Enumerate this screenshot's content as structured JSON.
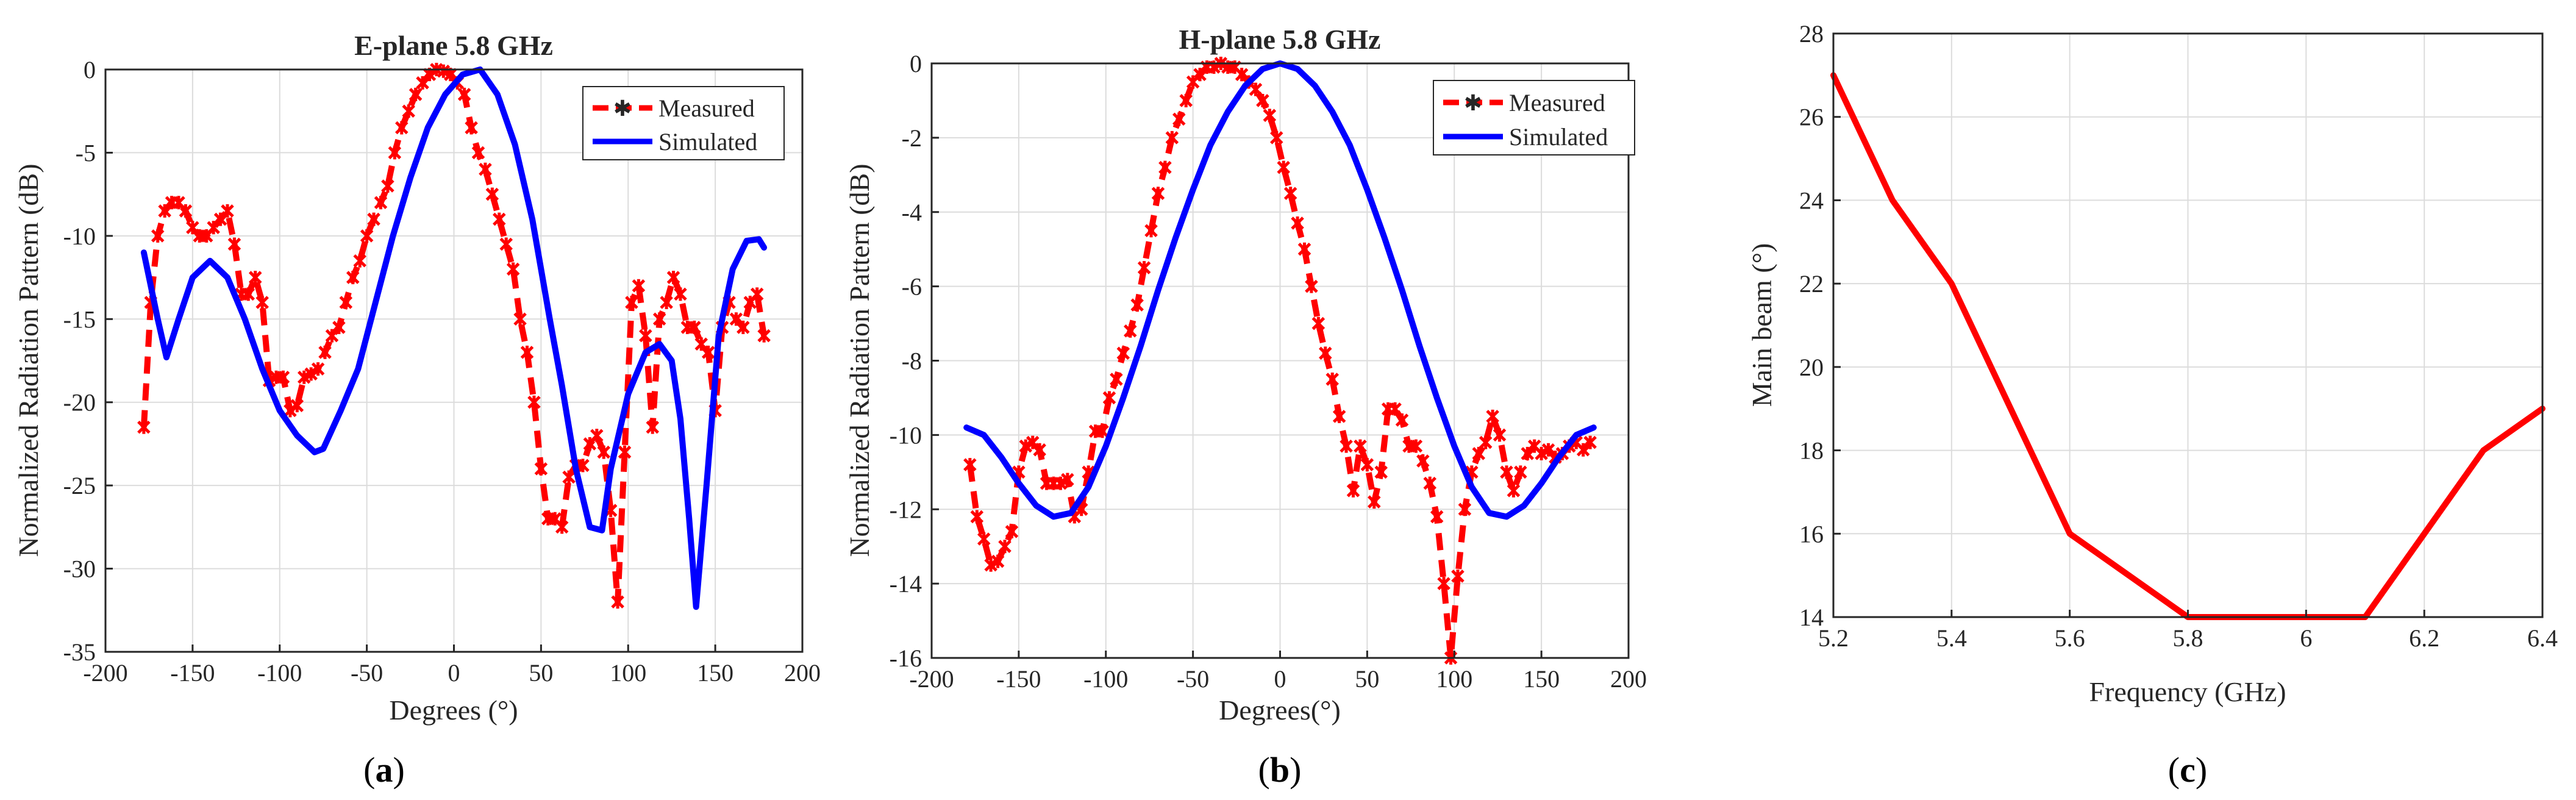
{
  "colors": {
    "measured": "#ff0000",
    "simulated": "#0000ff",
    "beam": "#ff0000"
  },
  "panel_labels": [
    {
      "open": "(",
      "letter": "a",
      "close": ")"
    },
    {
      "open": "(",
      "letter": "b",
      "close": ")"
    },
    {
      "open": "(",
      "letter": "c",
      "close": ")"
    }
  ],
  "chart_data": [
    {
      "type": "line",
      "title": "E-plane 5.8 GHz",
      "xlabel": "Degrees (°)",
      "ylabel": "Normalized Radiation Pattern (dB)",
      "xlim": [
        -200,
        200
      ],
      "ylim": [
        -35,
        0
      ],
      "xticks": [
        -200,
        -150,
        -100,
        -50,
        0,
        50,
        100,
        150,
        200
      ],
      "yticks": [
        0,
        -5,
        -10,
        -15,
        -20,
        -25,
        -30,
        -35
      ],
      "grid": true,
      "legend_position": "top-right",
      "series": [
        {
          "name": "Measured",
          "style": "dashed-markers",
          "x": [
            -178,
            -174,
            -170,
            -166,
            -162,
            -158,
            -154,
            -150,
            -146,
            -142,
            -138,
            -134,
            -130,
            -126,
            -122,
            -118,
            -114,
            -110,
            -106,
            -102,
            -98,
            -94,
            -90,
            -86,
            -82,
            -78,
            -74,
            -70,
            -66,
            -62,
            -58,
            -54,
            -50,
            -46,
            -42,
            -38,
            -34,
            -30,
            -26,
            -22,
            -18,
            -14,
            -10,
            -6,
            -2,
            2,
            6,
            10,
            14,
            18,
            22,
            26,
            30,
            34,
            38,
            42,
            46,
            50,
            54,
            58,
            62,
            66,
            70,
            74,
            78,
            82,
            86,
            90,
            94,
            98,
            102,
            106,
            110,
            114,
            118,
            122,
            126,
            130,
            134,
            138,
            142,
            146,
            150,
            154,
            158,
            162,
            166,
            170,
            174,
            178
          ],
          "y": [
            -21.5,
            -14,
            -10,
            -8.5,
            -8,
            -8,
            -8.5,
            -9.5,
            -10,
            -10,
            -9.5,
            -9,
            -8.5,
            -10.5,
            -13.5,
            -13.5,
            -12.5,
            -14,
            -18.7,
            -18.5,
            -18.5,
            -20.5,
            -20.2,
            -18.5,
            -18.3,
            -18,
            -17,
            -16,
            -15.5,
            -14,
            -12.5,
            -11.5,
            -10,
            -9,
            -8,
            -7,
            -5,
            -3.5,
            -2.5,
            -1.5,
            -0.8,
            -0.3,
            0,
            -0.1,
            -0.3,
            -0.8,
            -1.5,
            -3.5,
            -5,
            -6,
            -7.5,
            -9,
            -10.5,
            -12,
            -15,
            -17,
            -20,
            -24,
            -27,
            -27,
            -27.5,
            -24.5,
            -23.8,
            -23.8,
            -22.5,
            -22,
            -23,
            -26.5,
            -32,
            -23,
            -14,
            -13,
            -16,
            -21.5,
            -15,
            -14,
            -12.5,
            -13.5,
            -15.5,
            -15.5,
            -16.5,
            -17,
            -20.5,
            -15.5,
            -14,
            -15,
            -15.5,
            -14,
            -13.5,
            -16
          ]
        },
        {
          "name": "Simulated",
          "style": "solid",
          "x": [
            -178,
            -170,
            -165,
            -158,
            -150,
            -140,
            -130,
            -120,
            -110,
            -100,
            -90,
            -80,
            -75,
            -65,
            -55,
            -45,
            -35,
            -25,
            -15,
            -5,
            5,
            15,
            25,
            35,
            45,
            55,
            62,
            70,
            78,
            85,
            90,
            100,
            110,
            118,
            125,
            130,
            135,
            139,
            145,
            152,
            160,
            168,
            175,
            178
          ],
          "y": [
            -11,
            -15,
            -17.3,
            -15,
            -12.5,
            -11.5,
            -12.5,
            -15,
            -18,
            -20.5,
            -22,
            -23,
            -22.8,
            -20.5,
            -18,
            -14,
            -10,
            -6.5,
            -3.5,
            -1.5,
            -0.3,
            0,
            -1.5,
            -4.5,
            -9,
            -15,
            -19,
            -24,
            -27.5,
            -27.7,
            -24,
            -19.5,
            -17,
            -16.5,
            -17.5,
            -21,
            -27,
            -32.3,
            -25,
            -16,
            -12,
            -10.3,
            -10.2,
            -10.7
          ]
        }
      ]
    },
    {
      "type": "line",
      "title": "H-plane 5.8 GHz",
      "xlabel": "Degrees(°)",
      "ylabel": "Normalized Radiation Pattern (dB)",
      "xlim": [
        -200,
        200
      ],
      "ylim": [
        -16,
        0
      ],
      "xticks": [
        -200,
        -150,
        -100,
        -50,
        0,
        50,
        100,
        150,
        200
      ],
      "yticks": [
        0,
        -2,
        -4,
        -6,
        -8,
        -10,
        -12,
        -14,
        -16
      ],
      "grid": true,
      "legend_position": "top-right",
      "series": [
        {
          "name": "Measured",
          "style": "dashed-markers",
          "x": [
            -178,
            -174,
            -170,
            -166,
            -162,
            -158,
            -154,
            -150,
            -146,
            -142,
            -138,
            -134,
            -130,
            -126,
            -122,
            -118,
            -114,
            -110,
            -106,
            -102,
            -98,
            -94,
            -90,
            -86,
            -82,
            -78,
            -74,
            -70,
            -66,
            -62,
            -58,
            -54,
            -50,
            -46,
            -42,
            -38,
            -34,
            -30,
            -26,
            -22,
            -18,
            -14,
            -10,
            -6,
            -2,
            2,
            6,
            10,
            14,
            18,
            22,
            26,
            30,
            34,
            38,
            42,
            46,
            50,
            54,
            58,
            62,
            66,
            70,
            74,
            78,
            82,
            86,
            90,
            94,
            98,
            102,
            106,
            110,
            114,
            118,
            122,
            126,
            130,
            134,
            138,
            142,
            146,
            150,
            154,
            158,
            162,
            166,
            170,
            174,
            178
          ],
          "y": [
            -10.8,
            -12.2,
            -12.8,
            -13.5,
            -13.4,
            -13.0,
            -12.6,
            -11.0,
            -10.3,
            -10.2,
            -10.4,
            -11.3,
            -11.3,
            -11.3,
            -11.2,
            -12.2,
            -12.0,
            -11.0,
            -9.9,
            -9.9,
            -9.0,
            -8.5,
            -7.8,
            -7.2,
            -6.5,
            -5.5,
            -4.5,
            -3.5,
            -2.8,
            -2.0,
            -1.5,
            -1.0,
            -0.5,
            -0.3,
            -0.1,
            -0.1,
            0,
            -0.1,
            -0.1,
            -0.3,
            -0.5,
            -0.7,
            -1.0,
            -1.4,
            -2.0,
            -2.8,
            -3.5,
            -4.3,
            -5.0,
            -6.0,
            -7.0,
            -7.8,
            -8.5,
            -9.5,
            -10.3,
            -11.5,
            -10.3,
            -10.8,
            -11.8,
            -11.0,
            -9.3,
            -9.3,
            -9.6,
            -10.3,
            -10.3,
            -10.7,
            -11.3,
            -12.2,
            -14.0,
            -16.0,
            -13.8,
            -12.0,
            -11.0,
            -10.5,
            -10.2,
            -9.5,
            -10.0,
            -11.0,
            -11.5,
            -11.0,
            -10.5,
            -10.3,
            -10.5,
            -10.4,
            -10.6,
            -10.5,
            -10.3,
            -10.2,
            -10.4,
            -10.2
          ]
        },
        {
          "name": "Simulated",
          "style": "solid",
          "x": [
            -180,
            -170,
            -160,
            -150,
            -140,
            -130,
            -120,
            -110,
            -100,
            -90,
            -80,
            -70,
            -60,
            -50,
            -40,
            -30,
            -20,
            -10,
            0,
            10,
            20,
            30,
            40,
            50,
            60,
            70,
            80,
            90,
            100,
            110,
            120,
            130,
            140,
            150,
            160,
            170,
            180
          ],
          "y": [
            -9.8,
            -10.0,
            -10.6,
            -11.3,
            -11.9,
            -12.2,
            -12.1,
            -11.4,
            -10.3,
            -9.0,
            -7.6,
            -6.1,
            -4.7,
            -3.4,
            -2.2,
            -1.3,
            -0.6,
            -0.15,
            0,
            -0.15,
            -0.6,
            -1.3,
            -2.2,
            -3.4,
            -4.7,
            -6.1,
            -7.6,
            -9.0,
            -10.3,
            -11.4,
            -12.1,
            -12.2,
            -11.9,
            -11.3,
            -10.6,
            -10.0,
            -9.8
          ]
        }
      ]
    },
    {
      "type": "line",
      "title": "",
      "xlabel": "Frequency (GHz)",
      "ylabel": "Main beam (°)",
      "xlim": [
        5.2,
        6.4
      ],
      "ylim": [
        14,
        28
      ],
      "xticks": [
        5.2,
        5.4,
        5.6,
        5.8,
        6,
        6.2,
        6.4
      ],
      "yticks": [
        14,
        16,
        18,
        20,
        22,
        24,
        26,
        28
      ],
      "grid": true,
      "series": [
        {
          "name": "Main beam",
          "style": "solid",
          "x": [
            5.2,
            5.3,
            5.4,
            5.5,
            5.6,
            5.8,
            6.0,
            6.1,
            6.2,
            6.3,
            6.4
          ],
          "y": [
            27,
            24,
            22,
            19,
            16,
            14,
            14,
            14,
            16,
            18,
            19
          ]
        }
      ]
    }
  ]
}
